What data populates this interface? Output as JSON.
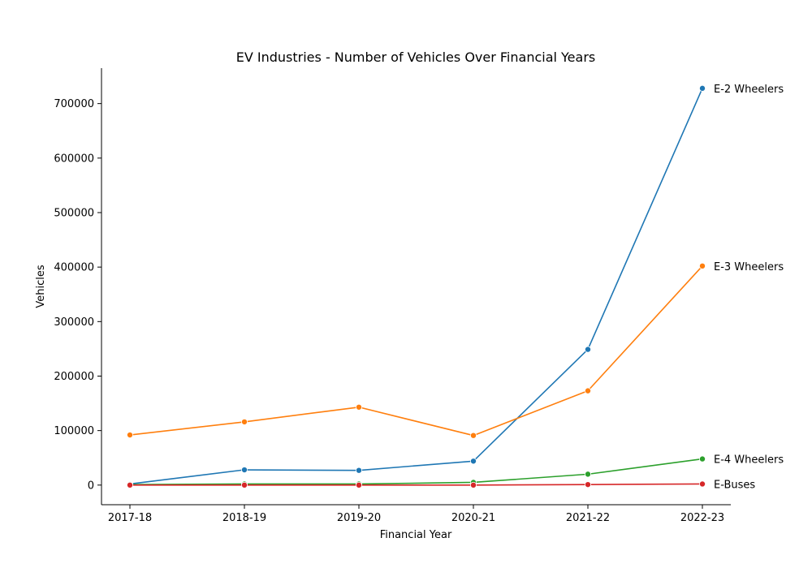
{
  "chart_data": {
    "type": "line",
    "title": "EV Industries - Number of Vehicles Over Financial Years",
    "xlabel": "Financial Year",
    "ylabel": "Vehicles",
    "categories": [
      "2017-18",
      "2018-19",
      "2019-20",
      "2020-21",
      "2021-22",
      "2022-23"
    ],
    "ylim": [
      -36000,
      765000
    ],
    "yticks": [
      0,
      100000,
      200000,
      300000,
      400000,
      500000,
      600000,
      700000
    ],
    "grid": false,
    "legend": "labels at line ends",
    "series": [
      {
        "name": "E-2 Wheelers",
        "color": "#1f77b4",
        "values": [
          2000,
          28000,
          27000,
          44000,
          249000,
          728000
        ]
      },
      {
        "name": "E-3 Wheelers",
        "color": "#ff7f0e",
        "values": [
          92000,
          116000,
          143000,
          91000,
          173000,
          402000
        ]
      },
      {
        "name": "E-4 Wheelers",
        "color": "#2ca02c",
        "values": [
          1000,
          2000,
          2000,
          5000,
          20000,
          48000
        ]
      },
      {
        "name": "E-Buses",
        "color": "#d62728",
        "values": [
          0,
          0,
          0,
          0,
          1000,
          2000
        ]
      }
    ]
  }
}
